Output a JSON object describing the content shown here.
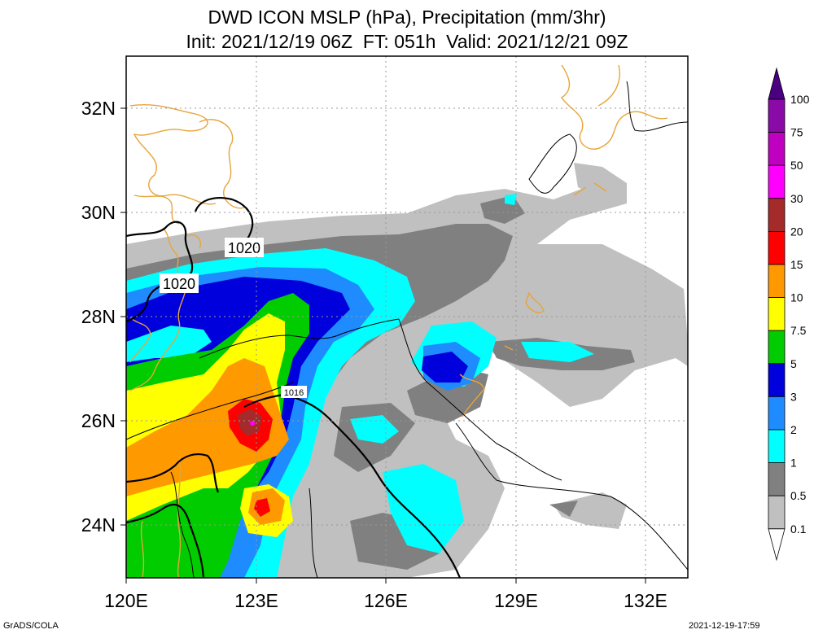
{
  "title": {
    "line1": "DWD ICON MSLP (hPa), Precipitation (mm/3hr)",
    "line2": "Init: 2021/12/19 06Z  FT: 051h  Valid: 2021/12/21 09Z"
  },
  "axes": {
    "lat_labels": [
      "32N",
      "30N",
      "28N",
      "26N",
      "24N"
    ],
    "lon_labels": [
      "120E",
      "123E",
      "126E",
      "129E",
      "132E"
    ]
  },
  "isobar_labels": [
    "1020",
    "1020",
    "1016"
  ],
  "colorbar": {
    "levels": [
      "100",
      "75",
      "50",
      "30",
      "20",
      "15",
      "10",
      "7.5",
      "5",
      "3",
      "2",
      "1",
      "0.5",
      "0.1"
    ],
    "colors": [
      "#4b0082",
      "#8a0aa8",
      "#c000c0",
      "#ff00ff",
      "#a52a2a",
      "#ff0000",
      "#ff9900",
      "#ffff00",
      "#00cc00",
      "#0000dd",
      "#1e8cff",
      "#00ffff",
      "#808080",
      "#c0c0c0",
      "#ffffff"
    ]
  },
  "footer": {
    "left": "GrADS/COLA",
    "right": "2021-12-19-17:59"
  }
}
